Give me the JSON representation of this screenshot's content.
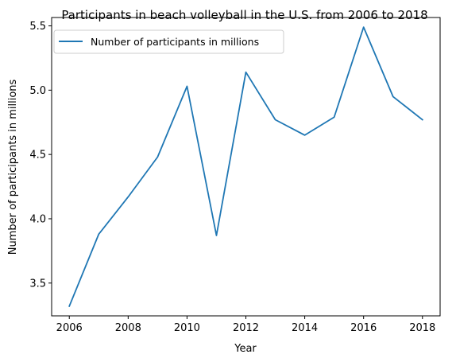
{
  "chart_data": {
    "type": "line",
    "title": "Participants in beach volleyball in the U.S. from 2006 to 2018",
    "xlabel": "Year",
    "ylabel": "Number of participants in millions",
    "x": [
      2006,
      2007,
      2008,
      2009,
      2010,
      2011,
      2012,
      2013,
      2014,
      2015,
      2016,
      2017,
      2018
    ],
    "series": [
      {
        "name": "Number of participants in millions",
        "color": "#1f77b4",
        "values": [
          3.32,
          3.88,
          4.17,
          4.48,
          5.03,
          3.87,
          5.14,
          4.77,
          4.65,
          4.79,
          5.49,
          4.95,
          4.77
        ]
      }
    ],
    "xlim": [
      2005.4,
      2018.6
    ],
    "ylim": [
      3.245,
      5.565
    ],
    "xticks": [
      2006,
      2008,
      2010,
      2012,
      2014,
      2016,
      2018
    ],
    "xtick_labels": [
      "2006",
      "2008",
      "2010",
      "2012",
      "2014",
      "2016",
      "2018"
    ],
    "yticks": [
      3.5,
      4.0,
      4.5,
      5.0,
      5.5
    ],
    "ytick_labels": [
      "3.5",
      "4.0",
      "4.5",
      "5.0",
      "5.5"
    ],
    "grid": false,
    "legend_position": "top-left"
  }
}
